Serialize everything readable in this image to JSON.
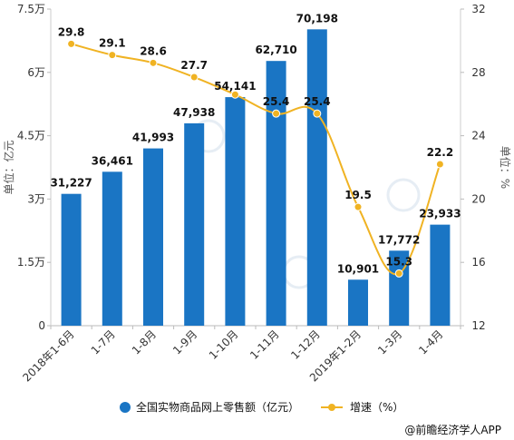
{
  "chart_data": {
    "type": "bar+line",
    "categories": [
      "2018年1-6月",
      "1-7月",
      "1-8月",
      "1-9月",
      "1-10月",
      "1-11月",
      "1-12月",
      "2019年1-2月",
      "1-3月",
      "1-4月"
    ],
    "series": [
      {
        "name": "全国实物商品网上零售额（亿元）",
        "type": "bar",
        "axis": "left",
        "color": "#1a75c4",
        "values": [
          31227,
          36461,
          41993,
          47938,
          54141,
          62710,
          70198,
          10901,
          17772,
          23933
        ],
        "labels": [
          "31,227",
          "36,461",
          "41,993",
          "47,938",
          "54,141",
          "62,710",
          "70,198",
          "10,901",
          "17,772",
          "23,933"
        ]
      },
      {
        "name": "增速（%）",
        "type": "line",
        "axis": "right",
        "color": "#f0b323",
        "values": [
          29.8,
          29.1,
          28.6,
          27.7,
          26.6,
          25.4,
          25.4,
          19.5,
          15.3,
          22.2
        ],
        "labels": [
          "29.8",
          "29.1",
          "28.6",
          "27.7",
          "",
          "25.4",
          "25.4",
          "19.5",
          "15.3",
          "22.2"
        ]
      }
    ],
    "y_left": {
      "label": "单位：亿元",
      "range": [
        0,
        75000
      ],
      "ticks": [
        0,
        15000,
        30000,
        45000,
        60000,
        75000
      ],
      "tick_labels": [
        "0",
        "1.5万",
        "3万",
        "4.5万",
        "6万",
        "7.5万"
      ]
    },
    "y_right": {
      "label": "单位：%",
      "range": [
        12,
        32
      ],
      "ticks": [
        12,
        16,
        20,
        24,
        28,
        32
      ],
      "tick_labels": [
        "12",
        "16",
        "20",
        "24",
        "28",
        "32"
      ]
    },
    "grid": false,
    "legend_position": "bottom"
  },
  "source": "@前瞻经济学人APP"
}
